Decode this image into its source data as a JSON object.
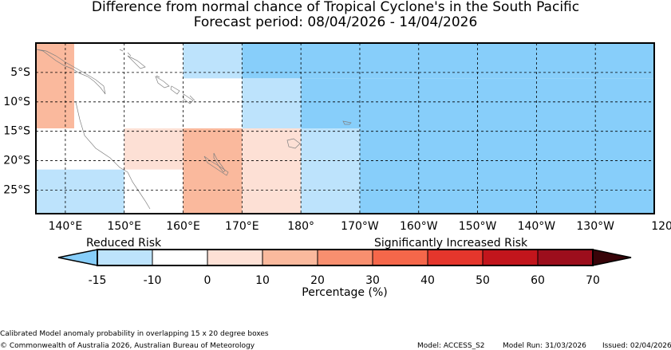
{
  "title": {
    "line1": "Difference from normal chance of Tropical Cyclone's in the South Pacific",
    "line2": "Forecast period: 08/04/2026 - 14/04/2026"
  },
  "map": {
    "lon_range": [
      135,
      240
    ],
    "lat_range": [
      0,
      -29
    ],
    "lat_ticks": [
      {
        "value": -5,
        "label": "5°S"
      },
      {
        "value": -10,
        "label": "10°S"
      },
      {
        "value": -15,
        "label": "15°S"
      },
      {
        "value": -20,
        "label": "20°S"
      },
      {
        "value": -25,
        "label": "25°S"
      }
    ],
    "lon_ticks": [
      {
        "value": 140,
        "label": "140°E"
      },
      {
        "value": 150,
        "label": "150°E"
      },
      {
        "value": 160,
        "label": "160°E"
      },
      {
        "value": 170,
        "label": "170°E"
      },
      {
        "value": 180,
        "label": "180°"
      },
      {
        "value": 190,
        "label": "170°W"
      },
      {
        "value": 200,
        "label": "160°W"
      },
      {
        "value": 210,
        "label": "150°W"
      },
      {
        "value": 220,
        "label": "140°W"
      },
      {
        "value": 230,
        "label": "130°W"
      },
      {
        "value": 240,
        "label": "120°W"
      }
    ],
    "anomaly_boxes": [
      {
        "lon": [
          135,
          141.5
        ],
        "lat": [
          0,
          -14.5
        ],
        "category": "+10 to +20"
      },
      {
        "lon": [
          135,
          150
        ],
        "lat": [
          -21.5,
          -29
        ],
        "category": "-15 to -10"
      },
      {
        "lon": [
          150,
          160
        ],
        "lat": [
          -14.5,
          -21.5
        ],
        "category": "0 to +10"
      },
      {
        "lon": [
          160,
          170
        ],
        "lat": [
          -14.5,
          -29
        ],
        "category": "+10 to +20"
      },
      {
        "lon": [
          170,
          180
        ],
        "lat": [
          -14.5,
          -29
        ],
        "category": "0 to +10"
      },
      {
        "lon": [
          160,
          170
        ],
        "lat": [
          0,
          -6
        ],
        "category": "-15 to -10"
      },
      {
        "lon": [
          170,
          240
        ],
        "lat": [
          0,
          -6
        ],
        "category": "below -15"
      },
      {
        "lon": [
          170,
          180
        ],
        "lat": [
          -6,
          -14.5
        ],
        "category": "-15 to -10"
      },
      {
        "lon": [
          180,
          240
        ],
        "lat": [
          -6,
          -14.5
        ],
        "category": "below -15"
      },
      {
        "lon": [
          180,
          190
        ],
        "lat": [
          -14.5,
          -29
        ],
        "category": "-15 to -10"
      },
      {
        "lon": [
          190,
          240
        ],
        "lat": [
          -14.5,
          -29
        ],
        "category": "below -15"
      }
    ]
  },
  "colorbar": {
    "reduced_label": "Reduced Risk",
    "increased_label": "Significantly Increased Risk",
    "bounds": [
      "-15",
      "-10",
      "0",
      "10",
      "20",
      "30",
      "40",
      "50",
      "60",
      "70"
    ],
    "colors": [
      "#bde3fc",
      "#ffffff",
      "#fde0d5",
      "#fab99d",
      "#f88f6f",
      "#f5674a",
      "#e5362c",
      "#c2151c",
      "#9c0e1c"
    ],
    "under_color": "#87cefa",
    "over_color": "#380409",
    "xlabel": "Percentage (%)"
  },
  "footer": {
    "description": "Calibrated Model anomaly probability in overlapping 15 x 20 degree boxes",
    "copyright": "© Commonwealth of Australia 2026, Australian Bureau of Meteorology",
    "model": "Model: ACCESS_S2",
    "model_run": "Model Run: 31/03/2026",
    "issued": "Issued: 02/04/2026"
  }
}
